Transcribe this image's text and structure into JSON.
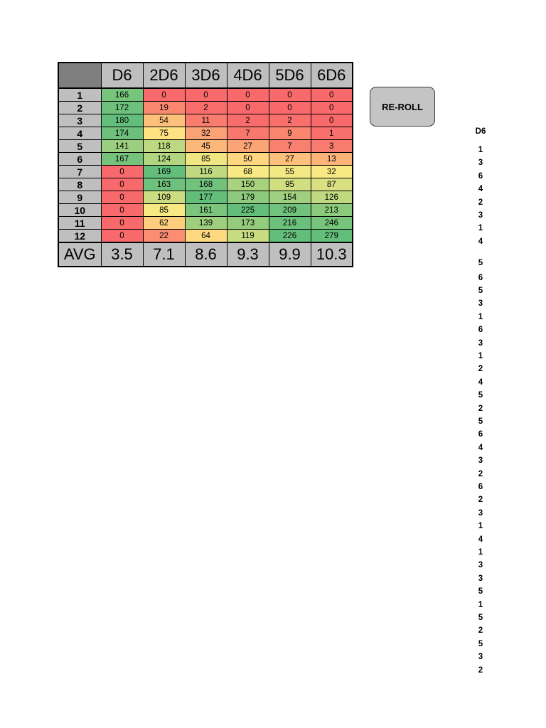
{
  "table": {
    "headers": [
      "D6",
      "2D6",
      "3D6",
      "4D6",
      "5D6",
      "6D6"
    ],
    "rows": [
      {
        "label": "1",
        "cells": [
          "166",
          "0",
          "0",
          "0",
          "0",
          "0"
        ]
      },
      {
        "label": "2",
        "cells": [
          "172",
          "19",
          "2",
          "0",
          "0",
          "0"
        ]
      },
      {
        "label": "3",
        "cells": [
          "180",
          "54",
          "11",
          "2",
          "2",
          "0"
        ]
      },
      {
        "label": "4",
        "cells": [
          "174",
          "75",
          "32",
          "7",
          "9",
          "1"
        ]
      },
      {
        "label": "5",
        "cells": [
          "141",
          "118",
          "45",
          "27",
          "7",
          "3"
        ]
      },
      {
        "label": "6",
        "cells": [
          "167",
          "124",
          "85",
          "50",
          "27",
          "13"
        ]
      },
      {
        "label": "7",
        "cells": [
          "0",
          "169",
          "116",
          "68",
          "55",
          "32"
        ]
      },
      {
        "label": "8",
        "cells": [
          "0",
          "163",
          "168",
          "150",
          "95",
          "87"
        ]
      },
      {
        "label": "9",
        "cells": [
          "0",
          "109",
          "177",
          "179",
          "154",
          "126"
        ]
      },
      {
        "label": "10",
        "cells": [
          "0",
          "85",
          "161",
          "225",
          "209",
          "213"
        ]
      },
      {
        "label": "11",
        "cells": [
          "0",
          "62",
          "139",
          "173",
          "216",
          "246"
        ]
      },
      {
        "label": "12",
        "cells": [
          "0",
          "22",
          "64",
          "119",
          "226",
          "279"
        ]
      }
    ],
    "avg_label": "AVG",
    "averages": [
      "3.5",
      "7.1",
      "8.6",
      "9.3",
      "9.9",
      "10.3"
    ]
  },
  "button": {
    "label": "RE-ROLL"
  },
  "rolls": {
    "header": "D6",
    "values": [
      "1",
      "3",
      "6",
      "4",
      "2",
      "3",
      "1",
      "4",
      "5",
      "6",
      "5",
      "3",
      "1",
      "6",
      "3",
      "1",
      "2",
      "4",
      "5",
      "2",
      "5",
      "6",
      "4",
      "3",
      "2",
      "6",
      "2",
      "3",
      "1",
      "4",
      "1",
      "3",
      "3",
      "5",
      "1",
      "5",
      "2",
      "5",
      "3",
      "2"
    ]
  },
  "colors": {
    "header_gray": "#bfbfbf",
    "corner_gray": "#7f7f7f",
    "scale_low": "#f8696b",
    "scale_mid": "#ffeb84",
    "scale_high": "#63be7b"
  }
}
